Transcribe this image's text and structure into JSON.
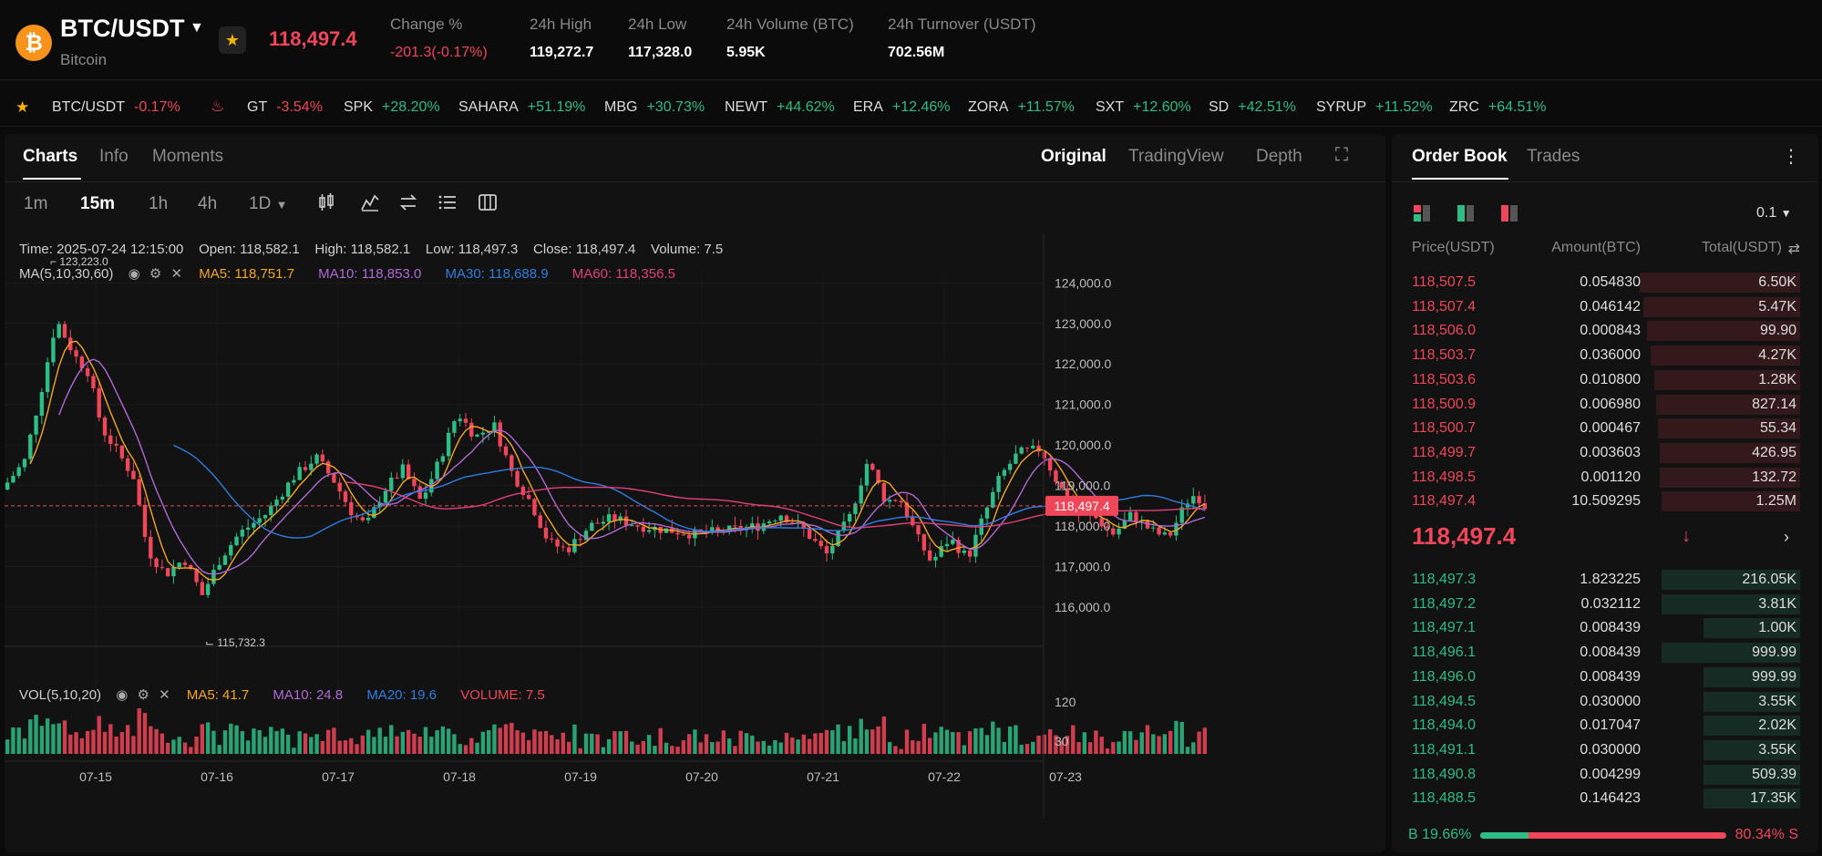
{
  "header": {
    "coin_icon_glyph": "₿",
    "pair": "BTC/USDT",
    "coin_name": "Bitcoin",
    "last_price": "118,497.4",
    "stats": [
      {
        "label": "Change %",
        "value": "-201.3(-0.17%)",
        "color": "red"
      },
      {
        "label": "24h High",
        "value": "119,272.7"
      },
      {
        "label": "24h Low",
        "value": "117,328.0"
      },
      {
        "label": "24h Volume (BTC)",
        "value": "5.95K"
      },
      {
        "label": "24h Turnover (USDT)",
        "value": "702.56M"
      }
    ]
  },
  "ticker": [
    {
      "sym": "BTC/USDT",
      "chg": "-0.17%",
      "up": false
    },
    {
      "sym": "GT",
      "chg": "-3.54%",
      "up": false
    },
    {
      "sym": "SPK",
      "chg": "+28.20%",
      "up": true
    },
    {
      "sym": "SAHARA",
      "chg": "+51.19%",
      "up": true
    },
    {
      "sym": "MBG",
      "chg": "+30.73%",
      "up": true
    },
    {
      "sym": "NEWT",
      "chg": "+44.62%",
      "up": true
    },
    {
      "sym": "ERA",
      "chg": "+12.46%",
      "up": true
    },
    {
      "sym": "ZORA",
      "chg": "+11.57%",
      "up": true
    },
    {
      "sym": "SXT",
      "chg": "+12.60%",
      "up": true
    },
    {
      "sym": "SD",
      "chg": "+42.51%",
      "up": true
    },
    {
      "sym": "SYRUP",
      "chg": "+11.52%",
      "up": true
    },
    {
      "sym": "ZRC",
      "chg": "+64.51%",
      "up": true
    }
  ],
  "chart_tabs": {
    "charts": "Charts",
    "info": "Info",
    "moments": "Moments"
  },
  "chart_views": {
    "original": "Original",
    "tradingview": "TradingView",
    "depth": "Depth"
  },
  "timeframes": [
    "1m",
    "15m",
    "1h",
    "4h",
    "1D"
  ],
  "active_timeframe": "15m",
  "ohlc_line": {
    "time": "Time: 2025-07-24 12:15:00",
    "open": "Open: 118,582.1",
    "high": "High: 118,582.1",
    "low": "Low: 118,497.3",
    "close": "Close: 118,497.4",
    "volume": "Volume: 7.5"
  },
  "ma_line": {
    "label": "MA(5,10,30,60)",
    "ma5": "MA5: 118,751.7",
    "ma10": "MA10: 118,853.0",
    "ma30": "MA30: 118,688.9",
    "ma60": "MA60: 118,356.5"
  },
  "vol_line": {
    "label": "VOL(5,10,20)",
    "ma5": "MA5: 41.7",
    "ma10": "MA10: 24.8",
    "ma20": "MA20: 19.6",
    "volume": "VOLUME: 7.5"
  },
  "colors": {
    "up": "#2ebd85",
    "down": "#f0465a",
    "ma5": "#f5a623",
    "ma10": "#b069d6",
    "ma30": "#2f7de1",
    "ma60": "#e0407a"
  },
  "chart_data": {
    "type": "candlestick",
    "price_axis": [
      "124,000.0",
      "123,000.0",
      "122,000.0",
      "121,000.0",
      "120,000.0",
      "119,000.0",
      "118,000.0",
      "117,000.0",
      "116,000.0"
    ],
    "price_range": [
      115300,
      124300
    ],
    "current_price_label": "118,497.4",
    "current_price": 118497.4,
    "high_marker": "123,223.0",
    "low_marker": "115,732.3",
    "volume_axis": [
      "120",
      "30"
    ],
    "volume_range": [
      0,
      190
    ],
    "date_labels": [
      "07-15",
      "07-16",
      "07-17",
      "07-18",
      "07-19",
      "07-20",
      "07-21",
      "07-22",
      "07-23"
    ],
    "path_keypoints": [
      [
        0,
        118900
      ],
      [
        25,
        119600
      ],
      [
        45,
        121500
      ],
      [
        60,
        123100
      ],
      [
        80,
        122200
      ],
      [
        95,
        121800
      ],
      [
        110,
        120400
      ],
      [
        125,
        119900
      ],
      [
        145,
        119200
      ],
      [
        160,
        117400
      ],
      [
        180,
        116800
      ],
      [
        200,
        117200
      ],
      [
        220,
        116300
      ],
      [
        240,
        117200
      ],
      [
        260,
        117800
      ],
      [
        290,
        118300
      ],
      [
        320,
        119200
      ],
      [
        345,
        119700
      ],
      [
        365,
        119100
      ],
      [
        385,
        118300
      ],
      [
        400,
        118000
      ],
      [
        420,
        118900
      ],
      [
        440,
        119400
      ],
      [
        460,
        118600
      ],
      [
        480,
        119600
      ],
      [
        500,
        120800
      ],
      [
        520,
        120200
      ],
      [
        540,
        120500
      ],
      [
        560,
        119300
      ],
      [
        580,
        118600
      ],
      [
        600,
        117600
      ],
      [
        620,
        117400
      ],
      [
        645,
        118000
      ],
      [
        670,
        118200
      ],
      [
        700,
        118000
      ],
      [
        730,
        117900
      ],
      [
        760,
        117800
      ],
      [
        800,
        117900
      ],
      [
        830,
        118000
      ],
      [
        855,
        118300
      ],
      [
        880,
        117900
      ],
      [
        905,
        117300
      ],
      [
        930,
        118200
      ],
      [
        950,
        119600
      ],
      [
        970,
        118600
      ],
      [
        985,
        118700
      ],
      [
        1005,
        117700
      ],
      [
        1020,
        117100
      ],
      [
        1040,
        117700
      ],
      [
        1060,
        117200
      ],
      [
        1075,
        118100
      ],
      [
        1095,
        119200
      ],
      [
        1115,
        119800
      ],
      [
        1140,
        119900
      ],
      [
        1160,
        119000
      ],
      [
        1180,
        118300
      ],
      [
        1200,
        118200
      ],
      [
        1220,
        117800
      ],
      [
        1240,
        118300
      ],
      [
        1260,
        117900
      ],
      [
        1280,
        117700
      ],
      [
        1300,
        118600
      ],
      [
        1310,
        118800
      ],
      [
        1320,
        118500
      ]
    ],
    "candle_count": 210
  },
  "orderbook": {
    "tab": "Order Book",
    "trades_tab": "Trades",
    "precision": "0.1",
    "headers": {
      "price": "Price(USDT)",
      "amount": "Amount(BTC)",
      "total": "Total(USDT)"
    },
    "asks": [
      {
        "price": "118,507.5",
        "amount": "0.054830",
        "total": "6.50K",
        "depth": 0.88
      },
      {
        "price": "118,507.4",
        "amount": "0.046142",
        "total": "5.47K",
        "depth": 0.86
      },
      {
        "price": "118,506.0",
        "amount": "0.000843",
        "total": "99.90",
        "depth": 0.84
      },
      {
        "price": "118,503.7",
        "amount": "0.036000",
        "total": "4.27K",
        "depth": 0.82
      },
      {
        "price": "118,503.6",
        "amount": "0.010800",
        "total": "1.28K",
        "depth": 0.8
      },
      {
        "price": "118,500.9",
        "amount": "0.006980",
        "total": "827.14",
        "depth": 0.79
      },
      {
        "price": "118,500.7",
        "amount": "0.000467",
        "total": "55.34",
        "depth": 0.78
      },
      {
        "price": "118,499.7",
        "amount": "0.003603",
        "total": "426.95",
        "depth": 0.77
      },
      {
        "price": "118,498.5",
        "amount": "0.001120",
        "total": "132.72",
        "depth": 0.77
      },
      {
        "price": "118,497.4",
        "amount": "10.509295",
        "total": "1.25M",
        "depth": 0.76
      }
    ],
    "mid_price": "118,497.4",
    "bids": [
      {
        "price": "118,497.3",
        "amount": "1.823225",
        "total": "216.05K",
        "depth": 0.76
      },
      {
        "price": "118,497.2",
        "amount": "0.032112",
        "total": "3.81K",
        "depth": 0.76
      },
      {
        "price": "118,497.1",
        "amount": "0.008439",
        "total": "1.00K",
        "depth": 0.53
      },
      {
        "price": "118,496.1",
        "amount": "0.008439",
        "total": "999.99",
        "depth": 0.76
      },
      {
        "price": "118,496.0",
        "amount": "0.008439",
        "total": "999.99",
        "depth": 0.53
      },
      {
        "price": "118,494.5",
        "amount": "0.030000",
        "total": "3.55K",
        "depth": 0.53
      },
      {
        "price": "118,494.0",
        "amount": "0.017047",
        "total": "2.02K",
        "depth": 0.53
      },
      {
        "price": "118,491.1",
        "amount": "0.030000",
        "total": "3.55K",
        "depth": 0.53
      },
      {
        "price": "118,490.8",
        "amount": "0.004299",
        "total": "509.39",
        "depth": 0.53
      },
      {
        "price": "118,488.5",
        "amount": "0.146423",
        "total": "17.35K",
        "depth": 0.53
      }
    ],
    "buy_ratio_label": "B 19.66%",
    "sell_ratio_label": "80.34% S",
    "buy_ratio": 0.1966
  }
}
